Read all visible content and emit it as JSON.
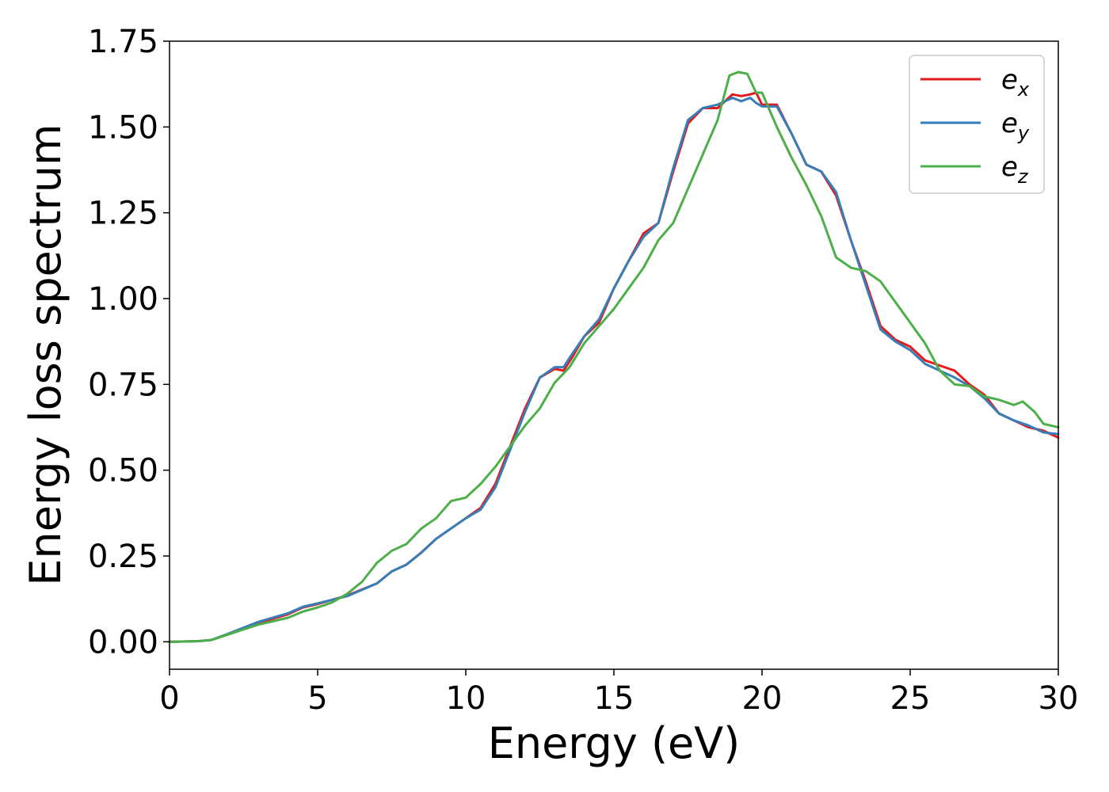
{
  "chart_data": {
    "type": "line",
    "title": "",
    "xlabel": "Energy (eV)",
    "ylabel": "Energy loss spectrum",
    "xlim": [
      0,
      30
    ],
    "ylim": [
      -0.08,
      1.75
    ],
    "xticks": [
      0,
      5,
      10,
      15,
      20,
      25,
      30
    ],
    "xtick_labels": [
      "0",
      "5",
      "10",
      "15",
      "20",
      "25",
      "30"
    ],
    "yticks": [
      0,
      0.25,
      0.5,
      0.75,
      1.0,
      1.25,
      1.5,
      1.75
    ],
    "ytick_labels": [
      "0.00",
      "0.25",
      "0.50",
      "0.75",
      "1.00",
      "1.25",
      "1.50",
      "1.75"
    ],
    "grid": false,
    "legend_position": "top-right",
    "series": [
      {
        "name": "e_x",
        "legend_base": "e",
        "legend_sub": "x",
        "color": "#e41a1c",
        "x": [
          0,
          1,
          1.4,
          2,
          3,
          4,
          4.5,
          5,
          6,
          7,
          7.5,
          8,
          8.5,
          9,
          9.5,
          10,
          10.5,
          11,
          11.5,
          12,
          12.5,
          13,
          13.3,
          13.6,
          14,
          14.5,
          15,
          15.5,
          16,
          16.5,
          17,
          17.5,
          18,
          18.5,
          19,
          19.3,
          19.6,
          19.8,
          20,
          20.5,
          21,
          21.5,
          22,
          22.5,
          23,
          23.5,
          24,
          24.5,
          25,
          25.5,
          26,
          26.5,
          27,
          27.5,
          28,
          28.5,
          29,
          29.5,
          30
        ],
        "y": [
          0.0,
          0.002,
          0.005,
          0.022,
          0.055,
          0.08,
          0.1,
          0.11,
          0.135,
          0.17,
          0.205,
          0.225,
          0.26,
          0.3,
          0.33,
          0.36,
          0.39,
          0.46,
          0.57,
          0.68,
          0.77,
          0.795,
          0.79,
          0.83,
          0.89,
          0.93,
          1.03,
          1.11,
          1.19,
          1.22,
          1.37,
          1.51,
          1.555,
          1.555,
          1.595,
          1.59,
          1.595,
          1.6,
          1.565,
          1.565,
          1.48,
          1.39,
          1.37,
          1.3,
          1.17,
          1.05,
          0.92,
          0.88,
          0.86,
          0.82,
          0.805,
          0.79,
          0.75,
          0.72,
          0.665,
          0.645,
          0.625,
          0.615,
          0.595
        ]
      },
      {
        "name": "e_y",
        "legend_base": "e",
        "legend_sub": "y",
        "color": "#377eb8",
        "x": [
          0,
          1,
          1.4,
          2,
          3,
          4,
          4.5,
          5,
          6,
          7,
          7.5,
          8,
          8.5,
          9,
          9.5,
          10,
          10.5,
          11,
          11.5,
          12,
          12.5,
          13,
          13.3,
          13.6,
          14,
          14.5,
          15,
          15.5,
          16,
          16.5,
          17,
          17.5,
          18,
          18.5,
          19,
          19.3,
          19.6,
          19.8,
          20,
          20.5,
          21,
          21.5,
          22,
          22.5,
          23,
          23.5,
          24,
          24.5,
          25,
          25.5,
          26,
          26.5,
          27,
          27.5,
          28,
          28.5,
          29,
          29.5,
          30
        ],
        "y": [
          0.0,
          0.002,
          0.005,
          0.024,
          0.058,
          0.083,
          0.102,
          0.112,
          0.133,
          0.17,
          0.205,
          0.225,
          0.26,
          0.3,
          0.33,
          0.36,
          0.385,
          0.45,
          0.56,
          0.67,
          0.77,
          0.8,
          0.8,
          0.84,
          0.89,
          0.94,
          1.03,
          1.11,
          1.18,
          1.22,
          1.38,
          1.52,
          1.555,
          1.565,
          1.585,
          1.575,
          1.585,
          1.57,
          1.56,
          1.56,
          1.48,
          1.39,
          1.37,
          1.31,
          1.17,
          1.04,
          0.91,
          0.875,
          0.85,
          0.81,
          0.79,
          0.77,
          0.745,
          0.71,
          0.665,
          0.645,
          0.63,
          0.61,
          0.605
        ]
      },
      {
        "name": "e_z",
        "legend_base": "e",
        "legend_sub": "z",
        "color": "#4daf4a",
        "x": [
          0,
          1,
          1.4,
          2,
          3,
          4,
          4.5,
          5,
          5.5,
          6,
          6.5,
          7,
          7.5,
          8,
          8.5,
          9,
          9.5,
          10,
          10.5,
          11,
          11.5,
          12,
          12.5,
          13,
          13.5,
          14,
          14.5,
          15,
          15.5,
          16,
          16.5,
          17,
          17.5,
          18,
          18.5,
          18.9,
          19.2,
          19.5,
          19.8,
          20,
          20.5,
          21,
          21.5,
          22,
          22.5,
          23,
          23.5,
          24,
          24.5,
          25,
          25.5,
          26,
          26.5,
          27,
          27.5,
          28,
          28.5,
          28.8,
          29.2,
          29.5,
          30
        ],
        "y": [
          0.0,
          0.002,
          0.005,
          0.022,
          0.05,
          0.07,
          0.088,
          0.1,
          0.115,
          0.14,
          0.175,
          0.23,
          0.265,
          0.285,
          0.33,
          0.36,
          0.41,
          0.42,
          0.46,
          0.51,
          0.57,
          0.63,
          0.68,
          0.755,
          0.8,
          0.87,
          0.92,
          0.97,
          1.03,
          1.09,
          1.17,
          1.22,
          1.32,
          1.42,
          1.52,
          1.65,
          1.66,
          1.655,
          1.6,
          1.6,
          1.5,
          1.41,
          1.33,
          1.24,
          1.12,
          1.09,
          1.08,
          1.05,
          0.99,
          0.93,
          0.87,
          0.79,
          0.75,
          0.745,
          0.715,
          0.705,
          0.69,
          0.7,
          0.67,
          0.635,
          0.625
        ]
      }
    ]
  }
}
